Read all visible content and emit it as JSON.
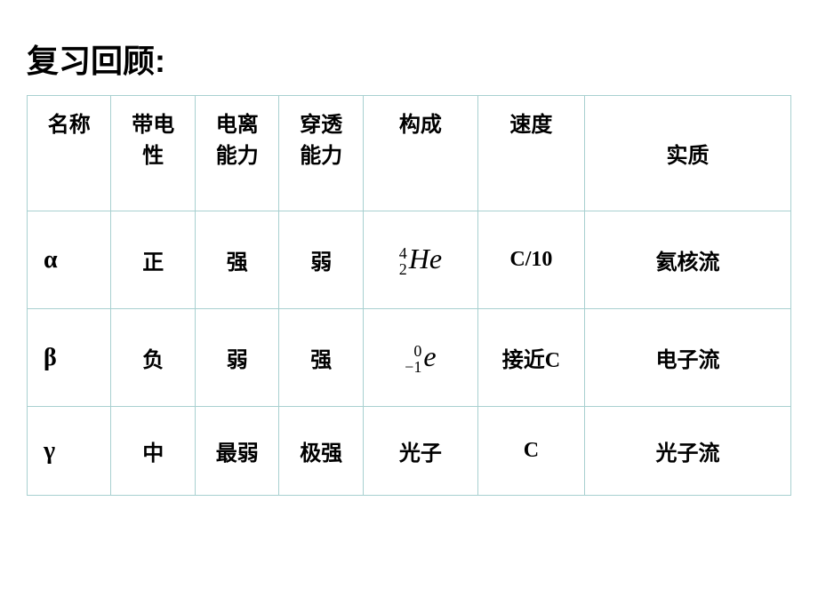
{
  "title": "复习回顾:",
  "headers": {
    "name": "名称",
    "charge": "带电\n性",
    "ionization": "电离\n能力",
    "penetration": "穿透\n能力",
    "composition": "构成",
    "speed": "速度",
    "essence": "实质"
  },
  "rows": {
    "alpha": {
      "symbol": "α",
      "charge": "正",
      "ionization": "强",
      "penetration": "弱",
      "composition_sup": "4",
      "composition_sub": "2",
      "composition_elem": "He",
      "speed": "C/10",
      "essence": "氦核流"
    },
    "beta": {
      "symbol": "β",
      "charge": "负",
      "ionization": "弱",
      "penetration": "强",
      "composition_sup": "0",
      "composition_sub": "−1",
      "composition_elem": "e",
      "speed_prefix": "接近",
      "speed_suffix": "C",
      "essence": "电子流"
    },
    "gamma": {
      "symbol": "γ",
      "charge": "中",
      "ionization": "最弱",
      "penetration": "极强",
      "composition": "光子",
      "speed": "C",
      "essence": "光子流"
    }
  },
  "styling": {
    "border_color": "#a8d0d0",
    "background_color": "#ffffff",
    "text_color": "#000000",
    "title_fontsize": 36,
    "header_fontsize": 24,
    "cell_fontsize": 24,
    "greek_fontsize": 28,
    "formula_fontsize": 32
  }
}
